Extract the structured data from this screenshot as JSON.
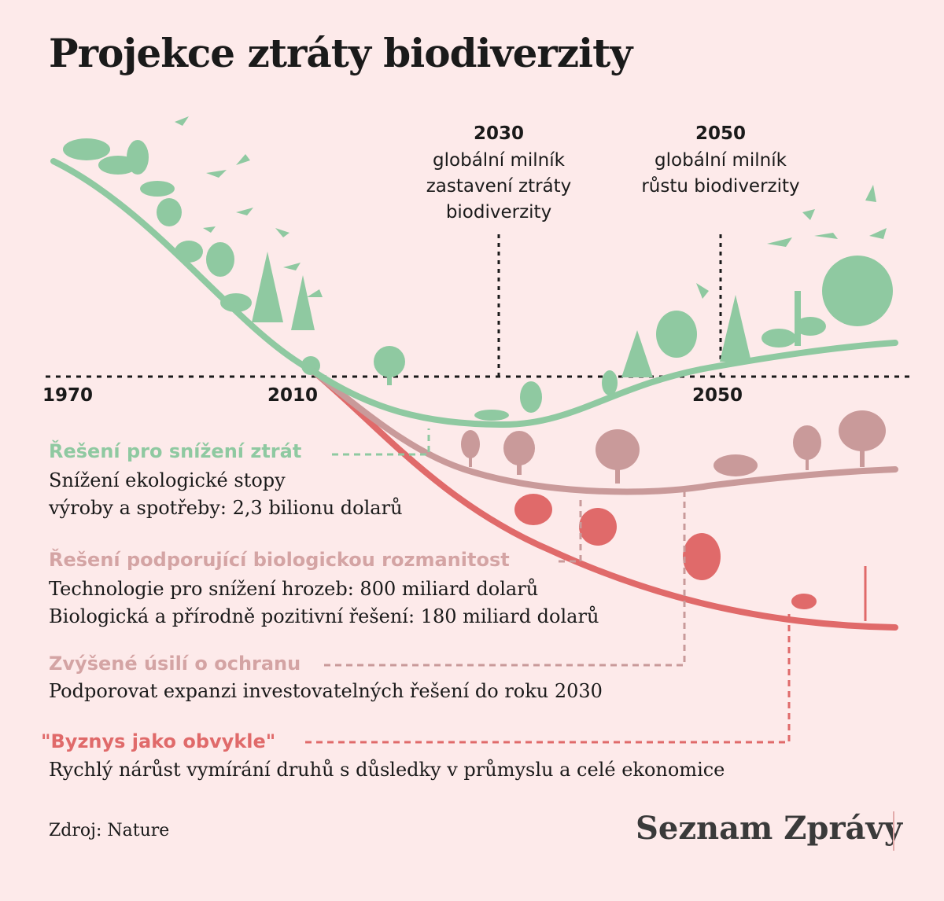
{
  "title": "Projekce ztráty biodiverzity",
  "milestones": [
    {
      "year": "2030",
      "text": [
        "globální milník",
        "zastavení ztráty",
        "biodiverzity"
      ]
    },
    {
      "year": "2050",
      "text": [
        "globální milník",
        "růstu biodiverzity"
      ]
    }
  ],
  "axis_labels": [
    "1970",
    "2010",
    "2050"
  ],
  "legend": [
    {
      "title": "Řešení pro snížení ztrát",
      "color": "#8fc9a1",
      "lines": [
        "Snížení ekologické stopy",
        "výroby a spotřeby: 2,3 bilionu dolarů"
      ]
    },
    {
      "title": "Řešení podporující biologickou rozmanitost",
      "color": "#d4a4a4",
      "lines": [
        "Technologie pro snížení hrozeb: 800 miliard dolarů",
        "Biologická a přírodně pozitivní řešení: 180 miliard dolarů"
      ]
    },
    {
      "title": "Zvýšené úsilí o ochranu",
      "color": "#d4a4a4",
      "lines": [
        "Podporovat expanzi investovatelných řešení do roku 2030"
      ]
    },
    {
      "title": "\"Byznys jako obvykle\"",
      "color": "#e06a6a",
      "lines": [
        "Rychlý nárůst vymírání druhů s důsledky v průmyslu a celé ekonomice"
      ]
    }
  ],
  "source": "Zdroj: Nature",
  "brand": "Seznam Zprávy",
  "colors": {
    "background": "#fdeaea",
    "green": "#8fc9a1",
    "mauve": "#c99a9a",
    "red": "#e06a6a",
    "dark": "#1a1a1a"
  }
}
